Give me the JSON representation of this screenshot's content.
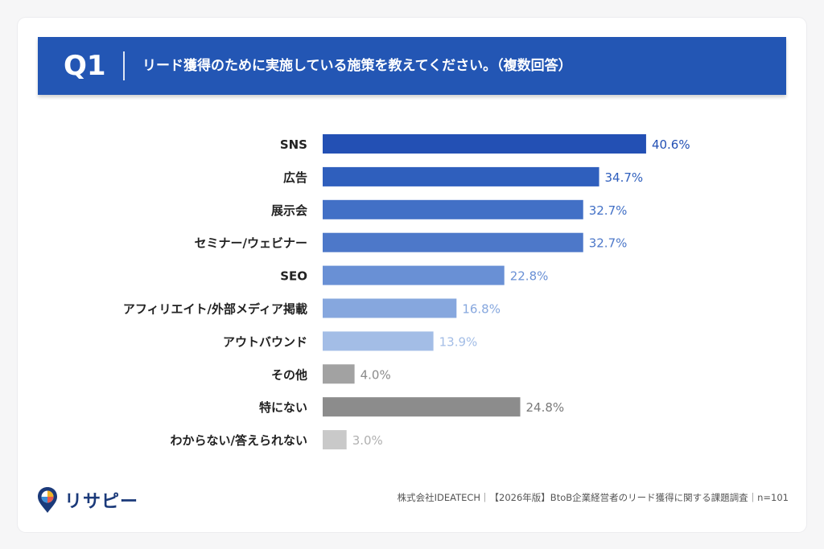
{
  "header": {
    "q_label": "Q1",
    "question": "リード獲得のために実施している施策を教えてください。（複数回答）",
    "color": "#2356b4"
  },
  "chart_data": {
    "type": "bar",
    "orientation": "horizontal",
    "unit": "%",
    "categories": [
      "SNS",
      "広告",
      "展示会",
      "セミナー/ウェビナー",
      "SEO",
      "アフィリエイト/外部メディア掲載",
      "アウトバウンド",
      "その他",
      "特にない",
      "わからない/答えられない"
    ],
    "values": [
      40.6,
      34.7,
      32.7,
      32.7,
      22.8,
      16.8,
      13.9,
      4.0,
      24.8,
      3.0
    ],
    "value_labels": [
      "40.6%",
      "34.7%",
      "32.7%",
      "32.7%",
      "22.8%",
      "16.8%",
      "13.9%",
      "4.0%",
      "24.8%",
      "3.0%"
    ],
    "bar_colors": [
      "#2350b4",
      "#2f5fbd",
      "#4270c6",
      "#4d78c9",
      "#6990d5",
      "#86a7de",
      "#a3bde6",
      "#a2a2a2",
      "#8c8c8c",
      "#c9c9c9"
    ],
    "label_colors": [
      "#2350b4",
      "#2f5fbd",
      "#4270c6",
      "#4d78c9",
      "#6990d5",
      "#86a7de",
      "#a3bde6",
      "#8a8a8a",
      "#7a7a7a",
      "#b0b0b0"
    ],
    "xlim": [
      0,
      100
    ],
    "grid": false,
    "legend": "none"
  },
  "footer": {
    "brand": "リサピー",
    "source": "株式会社IDEATECH｜【2026年版】BtoB企業経営者のリード獲得に関する課題調査｜n=101"
  }
}
